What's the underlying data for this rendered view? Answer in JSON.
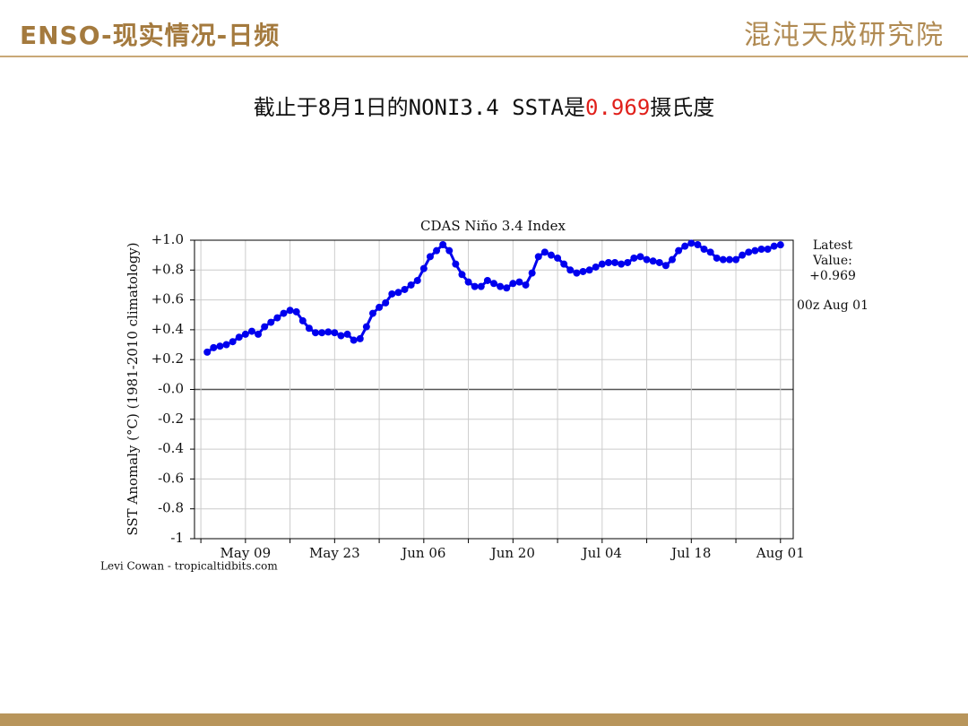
{
  "header": {
    "title": "ENSO-现实情况-日频",
    "logo": "混沌天成研究院"
  },
  "subtitle": {
    "prefix": "截止于8月1日的NONI3.4 SSTA是",
    "value": "0.969",
    "suffix": "摄氏度"
  },
  "chart_data": {
    "type": "line",
    "title": "CDAS Niño 3.4 Index",
    "ylabel": "SST Anomaly (°C) (1981-2010 climatology)",
    "credit": "Levi Cowan - tropicaltidbits.com",
    "annotations": [
      "Latest",
      "Value:",
      "+0.969",
      "00z Aug 01"
    ],
    "color": "#0000ee",
    "grid": true,
    "x": [
      "May 03",
      "May 04",
      "May 05",
      "May 06",
      "May 07",
      "May 08",
      "May 09",
      "May 10",
      "May 11",
      "May 12",
      "May 13",
      "May 14",
      "May 15",
      "May 16",
      "May 17",
      "May 18",
      "May 19",
      "May 20",
      "May 21",
      "May 22",
      "May 23",
      "May 24",
      "May 25",
      "May 26",
      "May 27",
      "May 28",
      "May 29",
      "May 30",
      "May 31",
      "Jun 01",
      "Jun 02",
      "Jun 03",
      "Jun 04",
      "Jun 05",
      "Jun 06",
      "Jun 07",
      "Jun 08",
      "Jun 09",
      "Jun 10",
      "Jun 11",
      "Jun 12",
      "Jun 13",
      "Jun 14",
      "Jun 15",
      "Jun 16",
      "Jun 17",
      "Jun 18",
      "Jun 19",
      "Jun 20",
      "Jun 21",
      "Jun 22",
      "Jun 23",
      "Jun 24",
      "Jun 25",
      "Jun 26",
      "Jun 27",
      "Jun 28",
      "Jun 29",
      "Jun 30",
      "Jul 01",
      "Jul 02",
      "Jul 03",
      "Jul 04",
      "Jul 05",
      "Jul 06",
      "Jul 07",
      "Jul 08",
      "Jul 09",
      "Jul 10",
      "Jul 11",
      "Jul 12",
      "Jul 13",
      "Jul 14",
      "Jul 15",
      "Jul 16",
      "Jul 17",
      "Jul 18",
      "Jul 19",
      "Jul 20",
      "Jul 21",
      "Jul 22",
      "Jul 23",
      "Jul 24",
      "Jul 25",
      "Jul 26",
      "Jul 27",
      "Jul 28",
      "Jul 29",
      "Jul 30",
      "Jul 31",
      "Aug 01"
    ],
    "values": [
      0.25,
      0.28,
      0.29,
      0.3,
      0.32,
      0.35,
      0.37,
      0.39,
      0.37,
      0.42,
      0.45,
      0.48,
      0.51,
      0.53,
      0.52,
      0.46,
      0.41,
      0.38,
      0.38,
      0.385,
      0.38,
      0.36,
      0.37,
      0.33,
      0.34,
      0.42,
      0.51,
      0.55,
      0.58,
      0.64,
      0.65,
      0.67,
      0.7,
      0.73,
      0.81,
      0.89,
      0.93,
      0.97,
      0.93,
      0.84,
      0.77,
      0.72,
      0.69,
      0.69,
      0.73,
      0.71,
      0.69,
      0.68,
      0.71,
      0.72,
      0.7,
      0.78,
      0.89,
      0.92,
      0.9,
      0.88,
      0.84,
      0.8,
      0.78,
      0.79,
      0.8,
      0.82,
      0.84,
      0.85,
      0.85,
      0.84,
      0.85,
      0.88,
      0.89,
      0.87,
      0.86,
      0.85,
      0.83,
      0.87,
      0.93,
      0.96,
      0.98,
      0.97,
      0.94,
      0.92,
      0.88,
      0.87,
      0.87,
      0.87,
      0.9,
      0.92,
      0.93,
      0.94,
      0.94,
      0.96,
      0.969
    ],
    "xlim": [
      "May 01",
      "Aug 03"
    ],
    "xticks": [
      "May 09",
      "May 23",
      "Jun 06",
      "Jun 20",
      "Jul 04",
      "Jul 18",
      "Aug 01"
    ],
    "xgrid": [
      "May 02",
      "May 16",
      "May 30",
      "Jun 13",
      "Jun 27",
      "Jul 11",
      "Jul 25"
    ],
    "ylim": [
      -1,
      1
    ],
    "yticks": [
      {
        "value": 1,
        "label": "+1.0"
      },
      {
        "value": 0.8,
        "label": "+0.8"
      },
      {
        "value": 0.6,
        "label": "+0.6"
      },
      {
        "value": 0.4,
        "label": "+0.4"
      },
      {
        "value": 0.2,
        "label": "+0.2"
      },
      {
        "value": 0,
        "label": "-0.0"
      },
      -0.2,
      -0.4,
      -0.6,
      -0.8,
      -1
    ]
  }
}
